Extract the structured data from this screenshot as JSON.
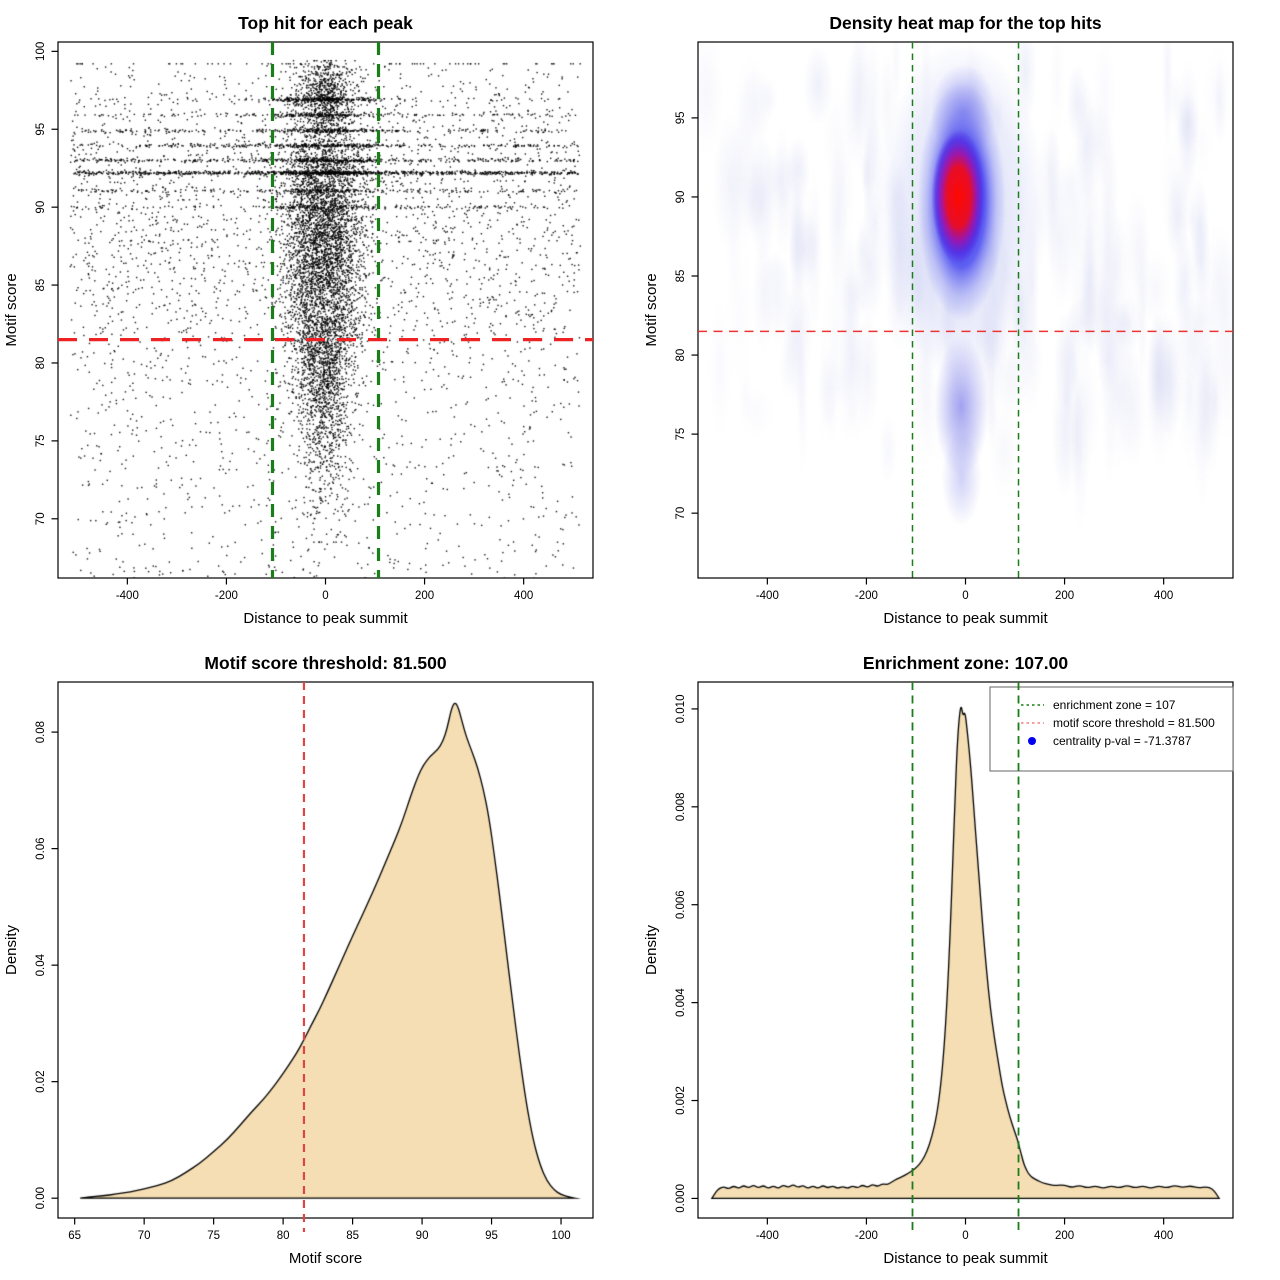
{
  "figure": {
    "background": "#ffffff",
    "point_color": "#000000",
    "fill_color": "#F5DEB3",
    "green_line_color": "#1B7E1B",
    "red_line_color": "#EE2222",
    "soft_red_color": "#E04444",
    "salmon_color": "#F08080",
    "blue_color": "#0000EE"
  },
  "chart_data": [
    {
      "type": "scatter",
      "title": "Top hit for each peak",
      "xlabel": "Distance to peak summit",
      "ylabel": "Motif score",
      "xlim": [
        -540,
        540
      ],
      "ylim": [
        66.2,
        100.6
      ],
      "x_ticks": [
        -400,
        -200,
        0,
        200,
        400
      ],
      "x_tick_labels": [
        "-400",
        "-200",
        "0",
        "200",
        "400"
      ],
      "y_ticks": [
        70,
        75,
        80,
        85,
        90,
        95,
        100
      ],
      "y_tick_labels": [
        "70",
        "75",
        "80",
        "85",
        "90",
        "95",
        "100"
      ],
      "grid": false,
      "ref_lines": {
        "enrichment_zone": 107,
        "motif_score_threshold": 81.5,
        "vline_style": {
          "color": "#1B7E1B",
          "width": 3.2,
          "dash": "13,9"
        },
        "hline_style": {
          "color": "#EE2222",
          "width": 3.2,
          "dash": "19,12"
        }
      },
      "generator": {
        "seed": 42,
        "cluster": {
          "n": 5200,
          "x_mean": -4,
          "x_sd": 40,
          "x_clip": 168,
          "y_mix": [
            [
              0.52,
              89.3,
              3.9
            ],
            [
              0.26,
              84.5,
              4.2
            ],
            [
              0.17,
              79.5,
              3.0
            ],
            [
              0.05,
              75.0,
              3.5
            ]
          ],
          "y_clip": [
            68.5,
            99.0
          ]
        },
        "top_cluster": {
          "n": 600,
          "x_mean": -2,
          "x_sd": 30,
          "x_clip": 110,
          "y_mean": 97.3,
          "y_sd": 1.1,
          "y_clip": [
            95.0,
            99.4
          ]
        },
        "background": {
          "n": 3000,
          "x_range": [
            -515,
            515
          ],
          "y_norm": [
            88.5,
            6.2
          ],
          "y_uniform": [
            64.5,
            99.0
          ],
          "norm_frac": 0.5,
          "y_clip": [
            63.5,
            99.2
          ]
        },
        "bands": [
          {
            "y": 92.2,
            "n_full": 700,
            "n_center": 320
          },
          {
            "y": 93.0,
            "n_full": 300,
            "n_center": 200
          },
          {
            "y": 93.95,
            "n_full": 230,
            "n_center": 170
          },
          {
            "y": 94.9,
            "n_full": 170,
            "n_center": 150
          },
          {
            "y": 95.9,
            "n_full": 120,
            "n_center": 160
          },
          {
            "y": 96.9,
            "n_full": 45,
            "n_center": 260
          },
          {
            "y": 91.05,
            "n_full": 170,
            "n_center": 90
          },
          {
            "y": 90.0,
            "n_full": 120,
            "n_center": 80
          }
        ],
        "outliers": {
          "n": 55,
          "x_range": [
            -480,
            480
          ],
          "y_range": [
            63.0,
            68.0
          ]
        }
      }
    },
    {
      "type": "heatmap",
      "title": "Density heat map for the top hits",
      "xlabel": "Distance to peak summit",
      "ylabel": "Motif score",
      "xlim": [
        -540,
        540
      ],
      "ylim": [
        65.9,
        99.8
      ],
      "x_ticks": [
        -400,
        -200,
        0,
        200,
        400
      ],
      "x_tick_labels": [
        "-400",
        "-200",
        "0",
        "200",
        "400"
      ],
      "y_ticks": [
        70,
        75,
        80,
        85,
        90,
        95
      ],
      "y_tick_labels": [
        "70",
        "75",
        "80",
        "85",
        "90",
        "95"
      ],
      "grid": false,
      "ref_lines": {
        "enrichment_zone": 107,
        "motif_score_threshold": 81.5,
        "vline_style": {
          "color": "#1B7E1B",
          "width": 1.5,
          "dash": "6.5,5"
        },
        "hline_style": {
          "color": "#EE3333",
          "width": 1.5,
          "dash": "9,6.5"
        }
      },
      "blob": {
        "x": -8,
        "y_center": 89.8,
        "y_top": 96.5,
        "y_bottom": 83.0,
        "core_y_top": 93.4,
        "core_y_bottom": 86.6,
        "tail_y": 76.0,
        "core_color": "#FF0A00",
        "blue_color": "#2828F0",
        "halo_color": "#96A0EB"
      },
      "noise": {
        "seed": 7,
        "count": 170,
        "strong_count": 25,
        "color": "#D8DAF2"
      }
    },
    {
      "type": "area",
      "title": "Motif score threshold: 81.500",
      "xlabel": "Motif score",
      "ylabel": "Density",
      "xlim": [
        63.8,
        102.3
      ],
      "ylim": [
        -0.0034,
        0.0886
      ],
      "x_ticks": [
        65,
        70,
        75,
        80,
        85,
        90,
        95,
        100
      ],
      "x_tick_labels": [
        "65",
        "70",
        "75",
        "80",
        "85",
        "90",
        "95",
        "100"
      ],
      "y_ticks": [
        0.0,
        0.02,
        0.04,
        0.06,
        0.08
      ],
      "y_tick_labels": [
        "0.00",
        "0.02",
        "0.04",
        "0.06",
        "0.08"
      ],
      "grid": false,
      "ref_lines": {
        "motif_score_threshold": 81.5,
        "vline_style": {
          "color": "#E04444",
          "width": 2.2,
          "dash": "8,6"
        }
      },
      "curve": [
        [
          65.4,
          0
        ],
        [
          66,
          0.0002
        ],
        [
          67,
          0.0004
        ],
        [
          68,
          0.0007
        ],
        [
          69,
          0.0011
        ],
        [
          70,
          0.0016
        ],
        [
          71,
          0.0022
        ],
        [
          72,
          0.003
        ],
        [
          73,
          0.0044
        ],
        [
          74,
          0.006
        ],
        [
          75,
          0.008
        ],
        [
          76,
          0.0101
        ],
        [
          77,
          0.0128
        ],
        [
          77.8,
          0.015
        ],
        [
          78.6,
          0.017
        ],
        [
          79.2,
          0.0188
        ],
        [
          79.8,
          0.0207
        ],
        [
          80.4,
          0.0228
        ],
        [
          81,
          0.025
        ],
        [
          81.5,
          0.0272
        ],
        [
          82,
          0.0296
        ],
        [
          82.6,
          0.0323
        ],
        [
          83.2,
          0.0354
        ],
        [
          83.8,
          0.0386
        ],
        [
          84.4,
          0.0418
        ],
        [
          85,
          0.045
        ],
        [
          85.6,
          0.0481
        ],
        [
          86.2,
          0.0512
        ],
        [
          86.8,
          0.0544
        ],
        [
          87.4,
          0.0578
        ],
        [
          88,
          0.0612
        ],
        [
          88.6,
          0.0648
        ],
        [
          89.2,
          0.0692
        ],
        [
          89.7,
          0.0724
        ],
        [
          90.1,
          0.0744
        ],
        [
          90.6,
          0.0759
        ],
        [
          91.1,
          0.0769
        ],
        [
          91.5,
          0.0784
        ],
        [
          91.8,
          0.0806
        ],
        [
          92.1,
          0.0839
        ],
        [
          92.35,
          0.0852
        ],
        [
          92.6,
          0.0843
        ],
        [
          92.9,
          0.0816
        ],
        [
          93.2,
          0.0791
        ],
        [
          93.6,
          0.0766
        ],
        [
          94,
          0.0739
        ],
        [
          94.4,
          0.0703
        ],
        [
          94.8,
          0.0656
        ],
        [
          95.2,
          0.0589
        ],
        [
          95.6,
          0.0516
        ],
        [
          96,
          0.0436
        ],
        [
          96.5,
          0.0339
        ],
        [
          97,
          0.0246
        ],
        [
          97.5,
          0.0163
        ],
        [
          98,
          0.0099
        ],
        [
          98.5,
          0.0056
        ],
        [
          99,
          0.0029
        ],
        [
          99.5,
          0.0014
        ],
        [
          100,
          0.0006
        ],
        [
          100.6,
          0.0002
        ],
        [
          101,
          0
        ]
      ]
    },
    {
      "type": "area",
      "title": "Enrichment zone: 107.00",
      "xlabel": "Distance to peak summit",
      "ylabel": "Density",
      "xlim": [
        -540,
        540
      ],
      "ylim": [
        -0.0004,
        0.01055
      ],
      "x_ticks": [
        -400,
        -200,
        0,
        200,
        400
      ],
      "x_tick_labels": [
        "-400",
        "-200",
        "0",
        "200",
        "400"
      ],
      "y_ticks": [
        0.0,
        0.002,
        0.004,
        0.006,
        0.008,
        0.01
      ],
      "y_tick_labels": [
        "0.000",
        "0.002",
        "0.004",
        "0.006",
        "0.008",
        "0.010"
      ],
      "grid": false,
      "ref_lines": {
        "enrichment_zone": 107,
        "vline_style": {
          "color": "#1B7E1B",
          "width": 1.8,
          "dash": "8,5.5"
        }
      },
      "legend": {
        "border_color": "#666666",
        "items": [
          {
            "label": "enrichment zone = 107",
            "marker": "dotted-line",
            "color": "#1B7E1B"
          },
          {
            "label": "motif score threshold = 81.500",
            "marker": "dotted-line",
            "color": "#F08080"
          },
          {
            "label": "centrality p-val = -71.3787",
            "marker": "point",
            "color": "#0000EE"
          }
        ]
      },
      "curve": [
        [
          -512,
          0
        ],
        [
          -505,
          0.00012
        ],
        [
          -498,
          0.0002
        ],
        [
          -488,
          0.00024
        ],
        [
          -478,
          0.00019
        ],
        [
          -468,
          0.00026
        ],
        [
          -458,
          0.0002
        ],
        [
          -448,
          0.00027
        ],
        [
          -438,
          0.00021
        ],
        [
          -428,
          0.00028
        ],
        [
          -418,
          0.00021
        ],
        [
          -408,
          0.00027
        ],
        [
          -398,
          0.0002
        ],
        [
          -388,
          0.00026
        ],
        [
          -378,
          0.0002
        ],
        [
          -368,
          0.00028
        ],
        [
          -358,
          0.00022
        ],
        [
          -348,
          0.00029
        ],
        [
          -338,
          0.00022
        ],
        [
          -328,
          0.00027
        ],
        [
          -318,
          0.0002
        ],
        [
          -308,
          0.00026
        ],
        [
          -298,
          0.0002
        ],
        [
          -288,
          0.00027
        ],
        [
          -278,
          0.00021
        ],
        [
          -268,
          0.00026
        ],
        [
          -258,
          0.0002
        ],
        [
          -248,
          0.00025
        ],
        [
          -238,
          0.0002
        ],
        [
          -228,
          0.00026
        ],
        [
          -218,
          0.00021
        ],
        [
          -208,
          0.00028
        ],
        [
          -198,
          0.00022
        ],
        [
          -188,
          0.00029
        ],
        [
          -178,
          0.00024
        ],
        [
          -168,
          0.0003
        ],
        [
          -158,
          0.00028
        ],
        [
          -148,
          0.00034
        ],
        [
          -138,
          0.0004
        ],
        [
          -128,
          0.00044
        ],
        [
          -118,
          0.0005
        ],
        [
          -108,
          0.00056
        ],
        [
          -98,
          0.00064
        ],
        [
          -88,
          0.00076
        ],
        [
          -78,
          0.00095
        ],
        [
          -68,
          0.00125
        ],
        [
          -58,
          0.0017
        ],
        [
          -50,
          0.0023
        ],
        [
          -43,
          0.0031
        ],
        [
          -37,
          0.0041
        ],
        [
          -31,
          0.0054
        ],
        [
          -26,
          0.0068
        ],
        [
          -21,
          0.0082
        ],
        [
          -17,
          0.0092
        ],
        [
          -13,
          0.0098
        ],
        [
          -9,
          0.0101
        ],
        [
          -5,
          0.00985
        ],
        [
          -1,
          0.00995
        ],
        [
          3,
          0.0096
        ],
        [
          8,
          0.0091
        ],
        [
          13,
          0.0085
        ],
        [
          18,
          0.0078
        ],
        [
          24,
          0.007
        ],
        [
          30,
          0.0062
        ],
        [
          36,
          0.0054
        ],
        [
          43,
          0.0046
        ],
        [
          50,
          0.0039
        ],
        [
          58,
          0.0033
        ],
        [
          66,
          0.0028
        ],
        [
          74,
          0.0023
        ],
        [
          82,
          0.00195
        ],
        [
          90,
          0.00165
        ],
        [
          98,
          0.0014
        ],
        [
          105,
          0.0012
        ],
        [
          110,
          0.001
        ],
        [
          114,
          0.00085
        ],
        [
          118,
          0.0007
        ],
        [
          123,
          0.00058
        ],
        [
          129,
          0.00048
        ],
        [
          136,
          0.00042
        ],
        [
          145,
          0.00037
        ],
        [
          155,
          0.00032
        ],
        [
          168,
          0.00028
        ],
        [
          182,
          0.00026
        ],
        [
          198,
          0.00028
        ],
        [
          214,
          0.00022
        ],
        [
          230,
          0.00027
        ],
        [
          246,
          0.00021
        ],
        [
          262,
          0.00026
        ],
        [
          278,
          0.0002
        ],
        [
          294,
          0.00026
        ],
        [
          310,
          0.00021
        ],
        [
          326,
          0.00027
        ],
        [
          342,
          0.00021
        ],
        [
          358,
          0.00026
        ],
        [
          374,
          0.0002
        ],
        [
          390,
          0.00026
        ],
        [
          406,
          0.00021
        ],
        [
          422,
          0.00027
        ],
        [
          438,
          0.00022
        ],
        [
          454,
          0.00026
        ],
        [
          470,
          0.00021
        ],
        [
          486,
          0.00024
        ],
        [
          498,
          0.0002
        ],
        [
          506,
          0.0001
        ],
        [
          512,
          0
        ]
      ]
    }
  ]
}
